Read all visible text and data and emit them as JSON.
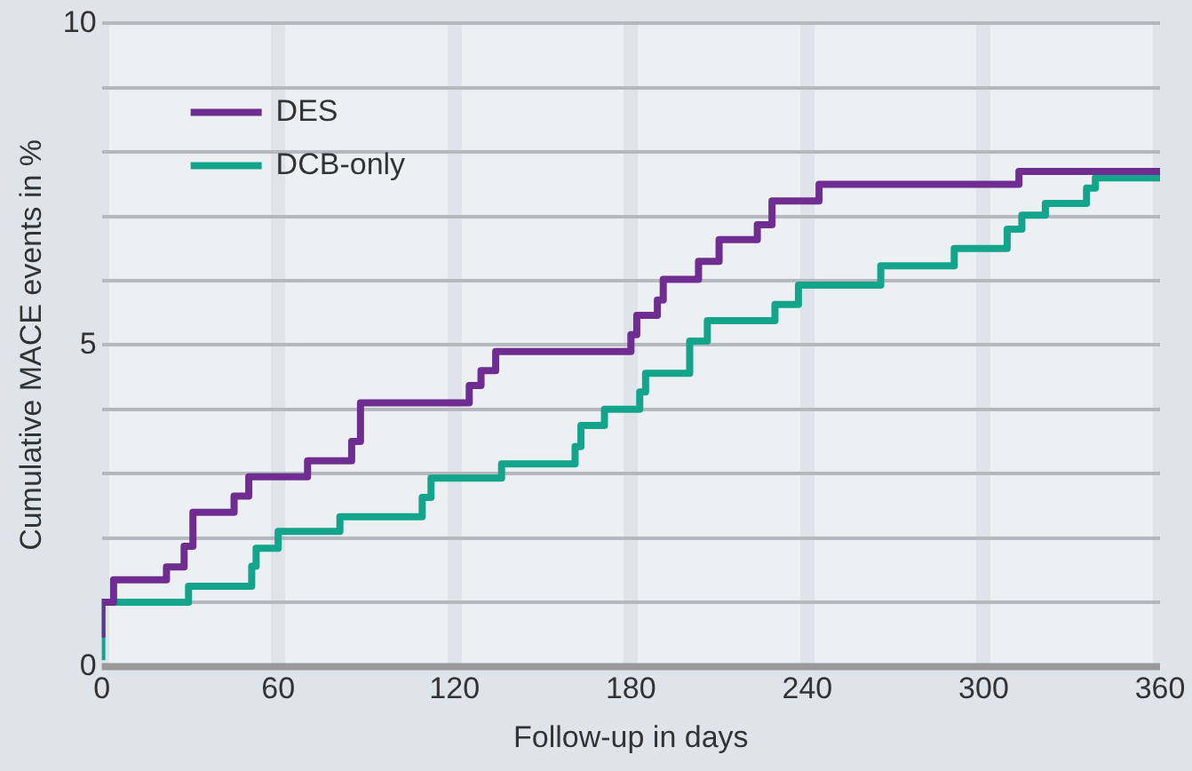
{
  "chart_data": {
    "type": "step",
    "xlabel": "Follow-up in days",
    "ylabel": "Cumulative MACE events in %",
    "xlim": [
      0,
      360
    ],
    "xticks": [
      0,
      60,
      120,
      180,
      240,
      300,
      360
    ],
    "ylim": [
      0,
      10
    ],
    "yticks": [
      0,
      {
        "value": 1,
        "label": null
      },
      {
        "value": 2,
        "label": null
      },
      {
        "value": 3,
        "label": null
      },
      {
        "value": 4,
        "label": null
      },
      5,
      {
        "value": 6,
        "label": null
      },
      {
        "value": 7,
        "label": null
      },
      {
        "value": 8,
        "label": null
      },
      {
        "value": 9,
        "label": null
      },
      10
    ],
    "grid": true,
    "legend": "top left",
    "line_style": "solid",
    "marker": "none",
    "series": [
      {
        "name": "DES",
        "color": "#6f2c91",
        "x": [
          0,
          4,
          22,
          28,
          31,
          45,
          50,
          70,
          85,
          88,
          125,
          129,
          134,
          180,
          182,
          189,
          191,
          203,
          210,
          223,
          228,
          244,
          312,
          334,
          360
        ],
        "values": [
          0.45,
          1.0,
          1.35,
          1.55,
          1.87,
          2.4,
          2.65,
          2.95,
          3.2,
          3.5,
          4.1,
          4.37,
          4.6,
          4.9,
          5.16,
          5.46,
          5.7,
          6.02,
          6.3,
          6.64,
          6.87,
          7.24,
          7.5,
          7.7,
          7.7
        ]
      },
      {
        "name": "DCB-only",
        "color": "#12a58c",
        "x": [
          0,
          29.5,
          51,
          52.5,
          60,
          81,
          109,
          112,
          136,
          161,
          163,
          171,
          183,
          185,
          200,
          206,
          229,
          237,
          265,
          290,
          308,
          313,
          321,
          335,
          338,
          340,
          360
        ],
        "values": [
          0.1,
          1.0,
          1.25,
          1.56,
          1.84,
          2.1,
          2.33,
          2.63,
          2.93,
          3.15,
          3.42,
          3.75,
          4.0,
          4.27,
          4.56,
          5.06,
          5.38,
          5.63,
          5.93,
          6.23,
          6.5,
          6.8,
          7.02,
          7.2,
          7.44,
          7.6,
          7.6
        ]
      }
    ]
  }
}
